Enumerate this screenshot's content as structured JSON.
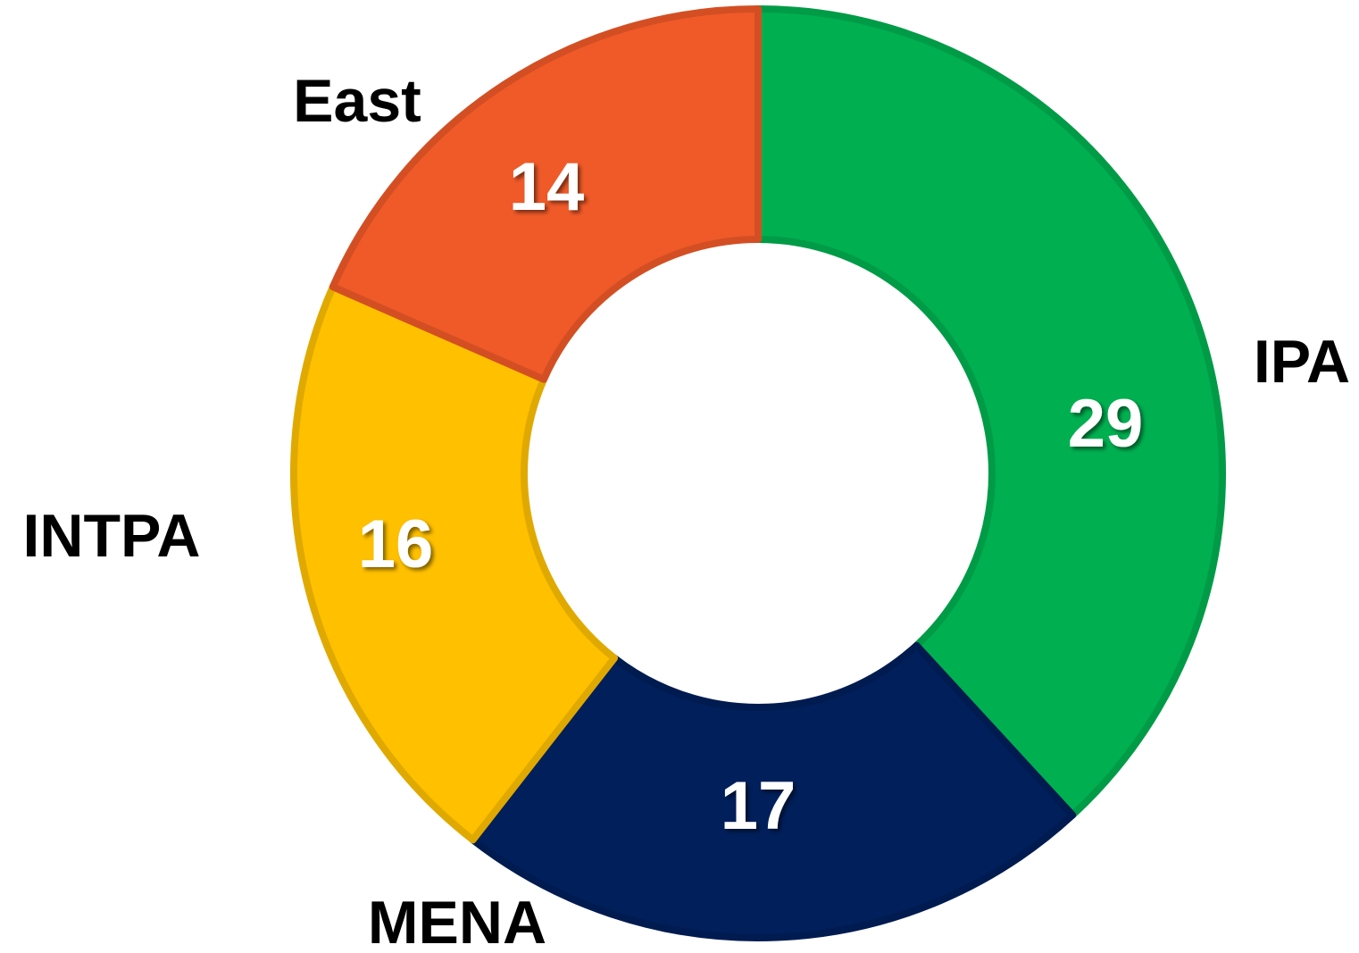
{
  "chart_data": {
    "type": "pie",
    "donut": true,
    "categories": [
      "IPA",
      "MENA",
      "INTPA",
      "East"
    ],
    "values": [
      29,
      17,
      16,
      14
    ],
    "colors": [
      "#00b050",
      "#001f5b",
      "#ffc000",
      "#f05a28"
    ]
  }
}
